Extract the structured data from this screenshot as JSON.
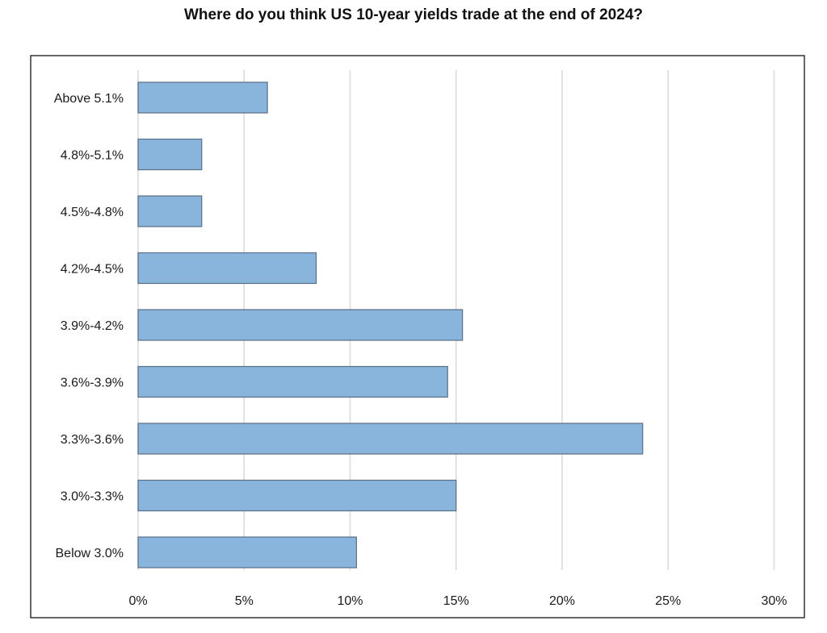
{
  "chart_data": {
    "type": "bar",
    "orientation": "horizontal",
    "title": "Where do you think US 10-year yields trade at the end of 2024?",
    "xlabel": "",
    "ylabel": "",
    "categories": [
      "Above 5.1%",
      "4.8%-5.1%",
      "4.5%-4.8%",
      "4.2%-4.5%",
      "3.9%-4.2%",
      "3.6%-3.9%",
      "3.3%-3.6%",
      "3.0%-3.3%",
      "Below 3.0%"
    ],
    "values": [
      6.1,
      3.0,
      3.0,
      8.4,
      15.3,
      14.6,
      23.8,
      15.0,
      10.3
    ],
    "xlim": [
      0,
      30
    ],
    "x_ticks": [
      "0%",
      "5%",
      "10%",
      "15%",
      "20%",
      "25%",
      "30%"
    ],
    "grid": "vertical",
    "legend": "none",
    "colors": {
      "bar_fill": "#89b4dc",
      "bar_stroke": "#5a6f86",
      "grid": "#d9d9d9",
      "frame": "#333333"
    }
  }
}
